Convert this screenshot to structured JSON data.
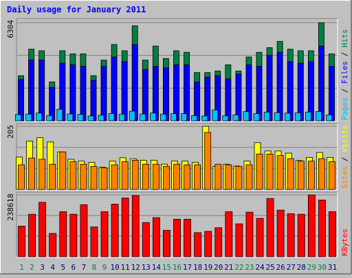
{
  "title": "Daily usage for January 2011",
  "colors": {
    "background": "#c0c0c0",
    "plot_bg": "#c0c0c0",
    "title": "#0000ff",
    "hits": "#008040",
    "files": "#0000ff",
    "pages": "#00c0ff",
    "visits": "#ffff00",
    "sites": "#ff8000",
    "kbytes": "#ff0000",
    "weekday_label": "#000080",
    "weekend_label": "#00804d"
  },
  "chart_data": [
    {
      "type": "bar",
      "title": "Daily usage for January 2011",
      "categories": [
        "1",
        "2",
        "3",
        "4",
        "5",
        "6",
        "7",
        "8",
        "9",
        "10",
        "11",
        "12",
        "13",
        "14",
        "15",
        "16",
        "17",
        "18",
        "19",
        "20",
        "21",
        "22",
        "23",
        "24",
        "25",
        "26",
        "27",
        "28",
        "29",
        "30",
        "31"
      ],
      "ylim": [
        0,
        6304
      ],
      "y_tick_label": "6304",
      "legend": [
        {
          "key": "pages",
          "label": "Pages",
          "color": "#00c0ff"
        },
        {
          "key": "sep1",
          "label": " / ",
          "color": "#000000"
        },
        {
          "key": "files",
          "label": "Files",
          "color": "#0000ff"
        },
        {
          "key": "sep2",
          "label": " / ",
          "color": "#000000"
        },
        {
          "key": "hits",
          "label": "Hits",
          "color": "#008040"
        }
      ],
      "series": [
        {
          "name": "Hits",
          "values": [
            2900,
            4600,
            4500,
            2500,
            4500,
            4300,
            4300,
            2900,
            3900,
            4900,
            4500,
            6100,
            3900,
            4800,
            4000,
            4500,
            4400,
            3100,
            3100,
            3200,
            3600,
            3200,
            4100,
            4400,
            4700,
            5100,
            4600,
            4500,
            4500,
            6304,
            4300
          ]
        },
        {
          "name": "Files",
          "values": [
            2650,
            3900,
            3900,
            2150,
            3700,
            3600,
            3500,
            2600,
            3500,
            4100,
            3800,
            4900,
            3300,
            3500,
            3400,
            3600,
            3600,
            2500,
            2800,
            2900,
            2700,
            3000,
            3600,
            3500,
            4200,
            4400,
            3800,
            3700,
            3800,
            4800,
            3500
          ]
        },
        {
          "name": "Pages",
          "values": [
            400,
            430,
            500,
            340,
            740,
            440,
            410,
            310,
            360,
            470,
            430,
            620,
            440,
            500,
            430,
            460,
            460,
            330,
            310,
            700,
            320,
            380,
            590,
            460,
            560,
            520,
            490,
            520,
            560,
            600,
            380
          ]
        }
      ]
    },
    {
      "type": "bar",
      "categories": [
        "1",
        "2",
        "3",
        "4",
        "5",
        "6",
        "7",
        "8",
        "9",
        "10",
        "11",
        "12",
        "13",
        "14",
        "15",
        "16",
        "17",
        "18",
        "19",
        "20",
        "21",
        "22",
        "23",
        "24",
        "25",
        "26",
        "27",
        "28",
        "29",
        "30",
        "31"
      ],
      "ylim": [
        0,
        205
      ],
      "y_tick_label": "205",
      "legend": [
        {
          "key": "sites",
          "label": "Sites",
          "color": "#ff8000"
        },
        {
          "key": "sep1",
          "label": " / ",
          "color": "#000000"
        },
        {
          "key": "visits",
          "label": "Visits",
          "color": "#ffff00"
        }
      ],
      "series": [
        {
          "name": "Visits",
          "values": [
            105,
            157,
            168,
            154,
            122,
            98,
            92,
            88,
            72,
            92,
            103,
            100,
            95,
            95,
            82,
            92,
            92,
            88,
            205,
            75,
            82,
            76,
            92,
            152,
            125,
            125,
            118,
            94,
            104,
            120,
            104
          ]
        },
        {
          "name": "Sites",
          "values": [
            80,
            102,
            98,
            82,
            122,
            90,
            82,
            75,
            70,
            80,
            90,
            95,
            82,
            82,
            75,
            82,
            80,
            80,
            185,
            82,
            80,
            75,
            80,
            115,
            115,
            110,
            100,
            92,
            92,
            100,
            90
          ]
        }
      ]
    },
    {
      "type": "bar",
      "categories": [
        "1",
        "2",
        "3",
        "4",
        "5",
        "6",
        "7",
        "8",
        "9",
        "10",
        "11",
        "12",
        "13",
        "14",
        "15",
        "16",
        "17",
        "18",
        "19",
        "20",
        "21",
        "22",
        "23",
        "24",
        "25",
        "26",
        "27",
        "28",
        "29",
        "30",
        "31"
      ],
      "ylim": [
        0,
        238618
      ],
      "y_tick_label": "238618",
      "legend": [
        {
          "key": "kbytes",
          "label": "KBytes",
          "color": "#ff0000"
        }
      ],
      "series": [
        {
          "name": "KBytes",
          "values": [
            118000,
            164000,
            210000,
            90000,
            174000,
            164000,
            201000,
            115000,
            174000,
            203000,
            227000,
            236000,
            132000,
            151000,
            102000,
            145000,
            145000,
            93000,
            98000,
            112000,
            174000,
            127000,
            172000,
            148000,
            225000,
            180000,
            166000,
            164000,
            238618,
            219000,
            174000
          ]
        }
      ]
    }
  ]
}
